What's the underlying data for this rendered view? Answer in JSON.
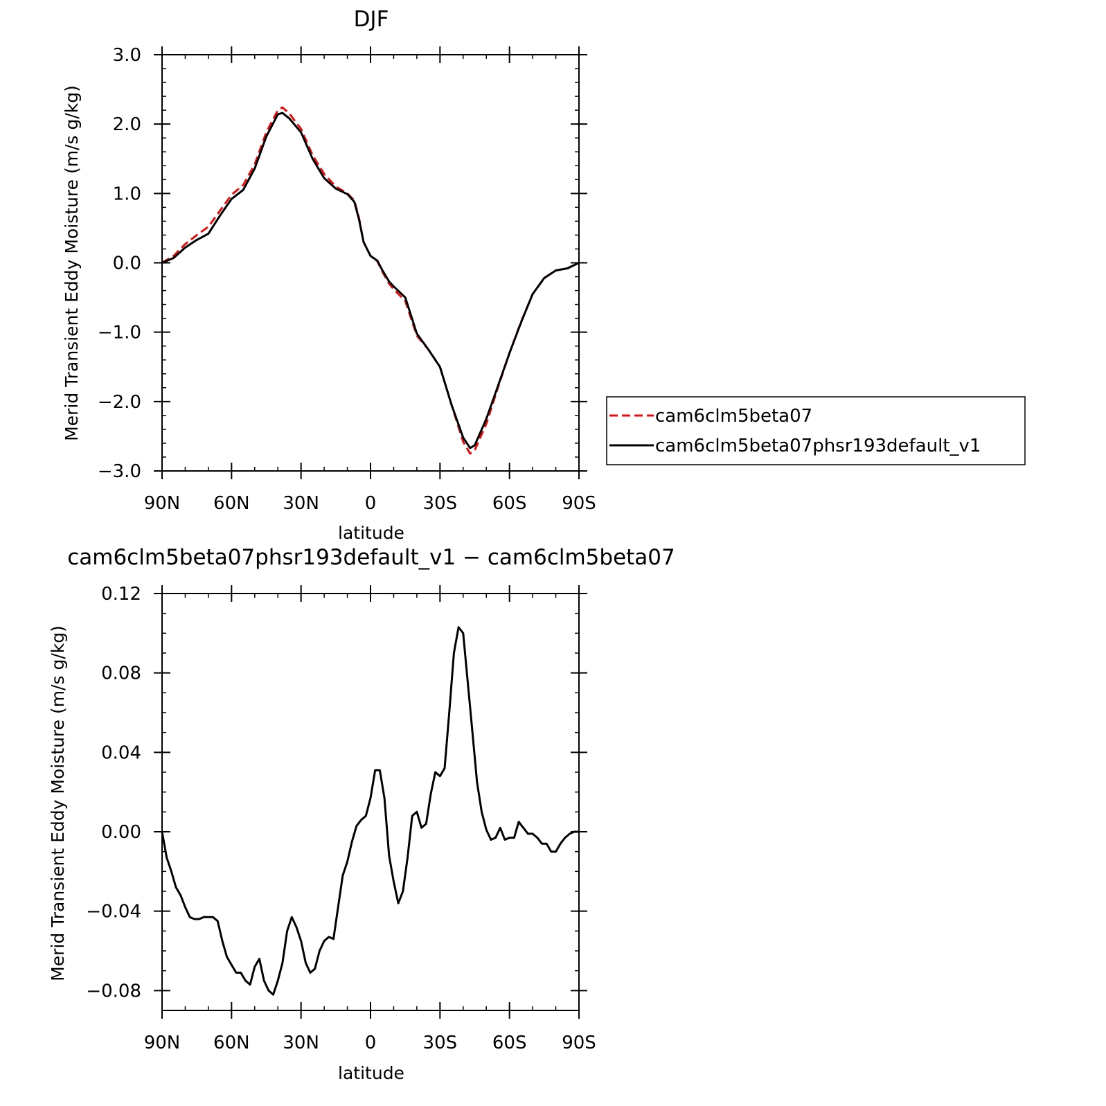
{
  "chart_data": [
    {
      "type": "line",
      "title": "DJF",
      "xlabel": "latitude",
      "ylabel": "Merid Transient Eddy Moisture (m/s g/kg)",
      "x_tick_values": [
        90,
        60,
        30,
        0,
        -30,
        -60,
        -90
      ],
      "x_tick_labels": [
        "90N",
        "60N",
        "30N",
        "0",
        "30S",
        "60S",
        "90S"
      ],
      "xlim": [
        90,
        -90
      ],
      "ylim": [
        -3.0,
        3.0
      ],
      "y_tick_values": [
        -3,
        -2,
        -1,
        0,
        1,
        2,
        3
      ],
      "y_tick_labels": [
        "−3.0",
        "−2.0",
        "−1.0",
        "0.0",
        "1.0",
        "2.0",
        "3.0"
      ],
      "legend_position": "right",
      "series": [
        {
          "name": "cam6clm5beta07",
          "color": "#e01010",
          "style": "dashed",
          "x": [
            90,
            85,
            80,
            75,
            70,
            65,
            60,
            55,
            50,
            45,
            40,
            38,
            35,
            30,
            25,
            20,
            15,
            10,
            7,
            5,
            3,
            0,
            -3,
            -5,
            -8,
            -10,
            -15,
            -20,
            -25,
            -30,
            -35,
            -40,
            -43,
            -45,
            -50,
            -55,
            -60,
            -65,
            -70,
            -75,
            -80,
            -85,
            -90
          ],
          "y": [
            0.0,
            0.1,
            0.27,
            0.4,
            0.52,
            0.75,
            0.98,
            1.12,
            1.42,
            1.88,
            2.2,
            2.24,
            2.15,
            1.93,
            1.55,
            1.28,
            1.1,
            1.0,
            0.9,
            0.65,
            0.3,
            0.1,
            0.02,
            -0.12,
            -0.3,
            -0.38,
            -0.55,
            -1.05,
            -1.25,
            -1.5,
            -2.05,
            -2.58,
            -2.75,
            -2.7,
            -2.32,
            -1.8,
            -1.3,
            -0.85,
            -0.45,
            -0.22,
            -0.11,
            -0.08,
            0.0
          ]
        },
        {
          "name": "cam6clm5beta07phsr193default_v1",
          "color": "#000000",
          "style": "solid",
          "x": [
            90,
            85,
            80,
            75,
            70,
            65,
            60,
            55,
            50,
            45,
            40,
            38,
            35,
            30,
            25,
            20,
            15,
            10,
            7,
            5,
            3,
            0,
            -3,
            -5,
            -8,
            -10,
            -15,
            -20,
            -25,
            -30,
            -35,
            -40,
            -43,
            -45,
            -50,
            -55,
            -60,
            -65,
            -70,
            -75,
            -80,
            -85,
            -90
          ],
          "y": [
            0.0,
            0.07,
            0.22,
            0.33,
            0.42,
            0.68,
            0.92,
            1.05,
            1.36,
            1.82,
            2.14,
            2.16,
            2.08,
            1.88,
            1.5,
            1.22,
            1.07,
            0.99,
            0.88,
            0.63,
            0.3,
            0.1,
            0.03,
            -0.1,
            -0.27,
            -0.34,
            -0.5,
            -1.02,
            -1.25,
            -1.5,
            -2.05,
            -2.52,
            -2.67,
            -2.63,
            -2.25,
            -1.78,
            -1.3,
            -0.86,
            -0.45,
            -0.22,
            -0.11,
            -0.08,
            0.0
          ]
        }
      ]
    },
    {
      "type": "line",
      "title": "cam6clm5beta07phsr193default_v1 − cam6clm5beta07",
      "xlabel": "latitude",
      "ylabel": "Merid Transient Eddy Moisture (m/s g/kg)",
      "x_tick_values": [
        90,
        60,
        30,
        0,
        -30,
        -60,
        -90
      ],
      "x_tick_labels": [
        "90N",
        "60N",
        "30N",
        "0",
        "30S",
        "60S",
        "90S"
      ],
      "xlim": [
        90,
        -90
      ],
      "ylim": [
        -0.09,
        0.12
      ],
      "y_tick_values": [
        -0.08,
        -0.04,
        0.0,
        0.04,
        0.08,
        0.12
      ],
      "y_tick_labels": [
        "−0.08",
        "−0.04",
        "0.00",
        "0.04",
        "0.08",
        "0.12"
      ],
      "series": [
        {
          "color": "#000000",
          "style": "solid",
          "x": [
            90,
            88,
            86,
            84,
            82,
            80,
            78,
            76,
            74,
            72,
            70,
            68,
            66,
            64,
            62,
            60,
            58,
            56,
            54,
            52,
            50,
            48,
            46,
            44,
            42,
            40,
            38,
            36,
            34,
            32,
            30,
            28,
            26,
            24,
            22,
            20,
            18,
            16,
            14,
            12,
            10,
            8,
            6,
            4,
            2,
            0,
            -2,
            -4,
            -6,
            -8,
            -10,
            -12,
            -14,
            -16,
            -18,
            -20,
            -22,
            -24,
            -26,
            -28,
            -30,
            -32,
            -34,
            -36,
            -38,
            -40,
            -42,
            -44,
            -46,
            -48,
            -50,
            -52,
            -54,
            -56,
            -58,
            -60,
            -62,
            -64,
            -66,
            -68,
            -70,
            -72,
            -74,
            -76,
            -78,
            -80,
            -82,
            -84,
            -86,
            -88,
            -90
          ],
          "y": [
            0.0,
            -0.013,
            -0.02,
            -0.028,
            -0.032,
            -0.038,
            -0.043,
            -0.044,
            -0.044,
            -0.043,
            -0.043,
            -0.043,
            -0.045,
            -0.055,
            -0.063,
            -0.067,
            -0.071,
            -0.071,
            -0.075,
            -0.077,
            -0.068,
            -0.064,
            -0.075,
            -0.08,
            -0.082,
            -0.075,
            -0.066,
            -0.05,
            -0.043,
            -0.048,
            -0.055,
            -0.066,
            -0.071,
            -0.069,
            -0.06,
            -0.055,
            -0.053,
            -0.054,
            -0.038,
            -0.022,
            -0.015,
            -0.005,
            0.003,
            0.006,
            0.008,
            0.017,
            0.031,
            0.031,
            0.017,
            -0.012,
            -0.025,
            -0.036,
            -0.03,
            -0.013,
            0.008,
            0.01,
            0.002,
            0.004,
            0.019,
            0.03,
            0.028,
            0.032,
            0.06,
            0.09,
            0.103,
            0.1,
            0.075,
            0.05,
            0.025,
            0.01,
            0.001,
            -0.004,
            -0.003,
            0.002,
            -0.004,
            -0.003,
            -0.003,
            0.005,
            0.002,
            -0.001,
            -0.001,
            -0.003,
            -0.006,
            -0.006,
            -0.01,
            -0.01,
            -0.006,
            -0.003,
            -0.001,
            0.0,
            0.0
          ]
        }
      ]
    }
  ]
}
